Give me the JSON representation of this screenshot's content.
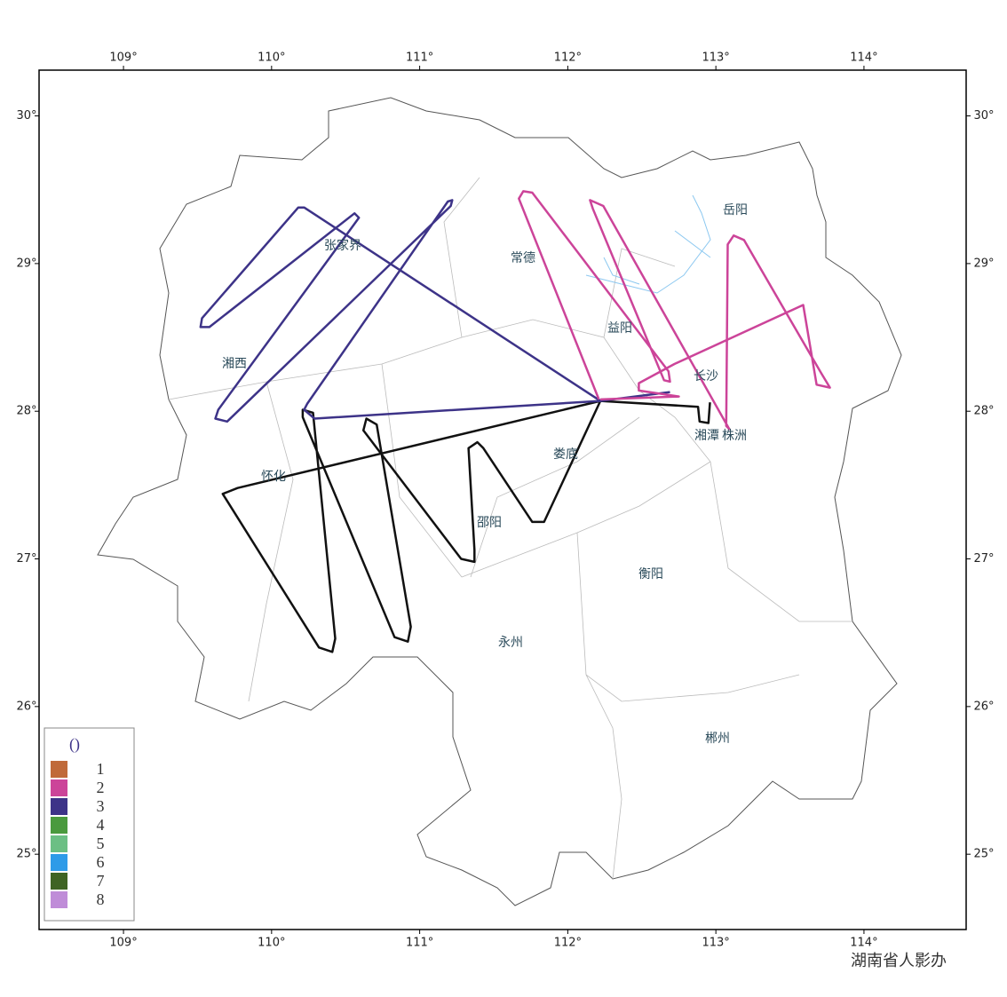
{
  "map": {
    "xlim": [
      108.43,
      114.69
    ],
    "ylim": [
      24.49,
      30.31
    ],
    "xticks": [
      {
        "value": 109,
        "label": "109°"
      },
      {
        "value": 110,
        "label": "110°"
      },
      {
        "value": 111,
        "label": "111°"
      },
      {
        "value": 112,
        "label": "112°"
      },
      {
        "value": 113,
        "label": "113°"
      },
      {
        "value": 114,
        "label": "114°"
      }
    ],
    "yticks": [
      {
        "value": 30,
        "label": "30°"
      },
      {
        "value": 29,
        "label": "29°"
      },
      {
        "value": 28,
        "label": "28°"
      },
      {
        "value": 27,
        "label": "27°"
      },
      {
        "value": 26,
        "label": "26°"
      },
      {
        "value": 25,
        "label": "25°"
      }
    ],
    "cities": [
      "岳阳",
      "张家界",
      "常德",
      "益阳",
      "湘西",
      "长沙",
      "湘潭",
      "株洲",
      "怀化",
      "娄底",
      "邵阳",
      "衡阳",
      "永州",
      "郴州"
    ],
    "tracks": [
      {
        "color": "#111111",
        "lon": [
          112.96,
          112.95,
          112.89,
          112.88,
          112.22,
          109.77,
          109.67,
          110.32,
          110.41,
          110.43,
          110.28,
          110.21,
          110.21,
          110.83,
          110.92,
          110.94,
          110.71,
          110.64,
          110.62,
          111.28,
          111.37,
          111.37,
          111.33,
          111.39,
          111.43,
          111.76,
          111.84,
          112.22
        ],
        "lat": [
          28.06,
          27.92,
          27.93,
          28.03,
          28.07,
          27.48,
          27.44,
          26.4,
          26.37,
          26.46,
          27.99,
          28.01,
          27.96,
          26.47,
          26.44,
          26.54,
          27.91,
          27.95,
          27.87,
          27.0,
          26.98,
          27.06,
          27.75,
          27.79,
          27.75,
          27.25,
          27.25,
          28.07
        ]
      },
      {
        "color": "#3d3388",
        "lon": [
          112.69,
          112.22,
          110.29,
          110.22,
          110.24,
          111.19,
          111.22,
          111.21,
          109.7,
          109.62,
          109.64,
          110.59,
          110.56,
          109.58,
          109.52,
          109.53,
          110.18,
          110.22,
          112.22
        ],
        "lat": [
          28.13,
          28.07,
          27.95,
          28.01,
          28.05,
          29.42,
          29.43,
          29.39,
          27.93,
          27.95,
          28.01,
          29.31,
          29.34,
          28.57,
          28.57,
          28.63,
          29.38,
          29.38,
          28.07
        ]
      },
      {
        "color": "#cc4499",
        "lon": [
          112.22,
          112.75,
          112.48,
          112.48,
          112.72,
          113.59,
          113.68,
          113.77,
          113.71,
          113.19,
          113.12,
          113.08,
          113.07,
          113.09,
          112.24,
          112.15,
          112.17,
          112.65,
          112.69,
          112.68,
          111.76,
          111.7,
          111.67,
          112.21
        ],
        "lat": [
          28.08,
          28.1,
          28.14,
          28.19,
          28.32,
          28.72,
          28.18,
          28.16,
          28.26,
          29.16,
          29.19,
          29.13,
          27.9,
          27.88,
          29.39,
          29.43,
          29.37,
          28.21,
          28.2,
          28.27,
          29.48,
          29.49,
          29.44,
          28.08
        ]
      }
    ],
    "legend": {
      "title": "()",
      "items": [
        {
          "label": "1",
          "color": "#c06a3a"
        },
        {
          "label": "2",
          "color": "#cc4499"
        },
        {
          "label": "3",
          "color": "#3d3388"
        },
        {
          "label": "4",
          "color": "#4a9a3e"
        },
        {
          "label": "5",
          "color": "#6cbf84"
        },
        {
          "label": "6",
          "color": "#2e9be8"
        },
        {
          "label": "7",
          "color": "#3f6424"
        },
        {
          "label": "8",
          "color": "#bf8cd8"
        }
      ]
    }
  },
  "footer": "湖南省人影办"
}
